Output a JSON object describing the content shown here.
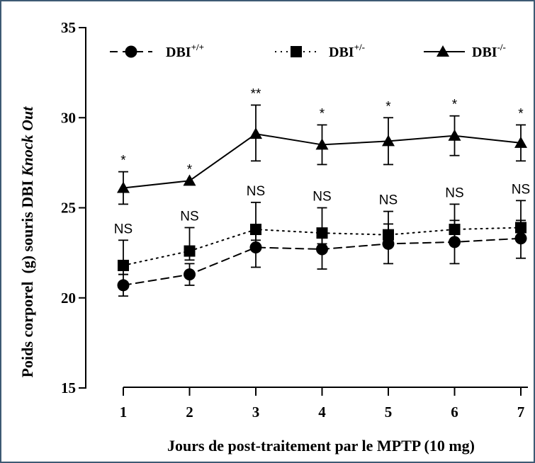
{
  "chart_data": {
    "type": "line",
    "xlabel": "Jours de post-traitement par le MPTP (10 mg)",
    "ylabel": {
      "prefix": "Poids corporel  (g) souris DBI ",
      "italic": "Knock Out"
    },
    "ylim": [
      15,
      35
    ],
    "yticks": [
      15,
      20,
      25,
      30,
      35
    ],
    "x": [
      1,
      2,
      3,
      4,
      5,
      6,
      7
    ],
    "grid": false,
    "legend_position": "top",
    "series": [
      {
        "name": "DBI",
        "superscript": "+/+",
        "marker": "circle",
        "linestyle": "dashed",
        "color": "#000000",
        "values": [
          20.7,
          21.3,
          22.8,
          22.7,
          23.0,
          23.1,
          23.3
        ],
        "err_up": [
          0.6,
          0.6,
          1.1,
          1.1,
          1.1,
          1.2,
          1.0
        ],
        "err_down": [
          0.6,
          0.6,
          1.1,
          1.1,
          1.1,
          1.2,
          1.1
        ]
      },
      {
        "name": "DBI",
        "superscript": "+/-",
        "marker": "square",
        "linestyle": "dotted",
        "color": "#000000",
        "values": [
          21.8,
          22.6,
          23.8,
          23.6,
          23.5,
          23.8,
          23.9
        ],
        "err_up": [
          1.4,
          1.3,
          1.5,
          1.4,
          1.3,
          1.4,
          1.5
        ],
        "err_down": [
          0.5,
          0.5,
          0.6,
          0.6,
          0.6,
          0.6,
          0.6
        ]
      },
      {
        "name": "DBI",
        "superscript": "-/-",
        "marker": "triangle",
        "linestyle": "solid",
        "color": "#000000",
        "values": [
          26.1,
          26.5,
          29.1,
          28.5,
          28.7,
          29.0,
          28.6
        ],
        "err_up": [
          0.9,
          0.0,
          1.6,
          1.1,
          1.3,
          1.1,
          1.0
        ],
        "err_down": [
          0.9,
          0.0,
          1.5,
          1.1,
          1.3,
          1.1,
          1.0
        ]
      }
    ],
    "annotations": {
      "top": [
        "*",
        "*",
        "**",
        "*",
        "*",
        "*",
        "*"
      ],
      "middle": [
        "NS",
        "NS",
        "NS",
        "NS",
        "NS",
        "NS",
        "NS"
      ]
    }
  }
}
